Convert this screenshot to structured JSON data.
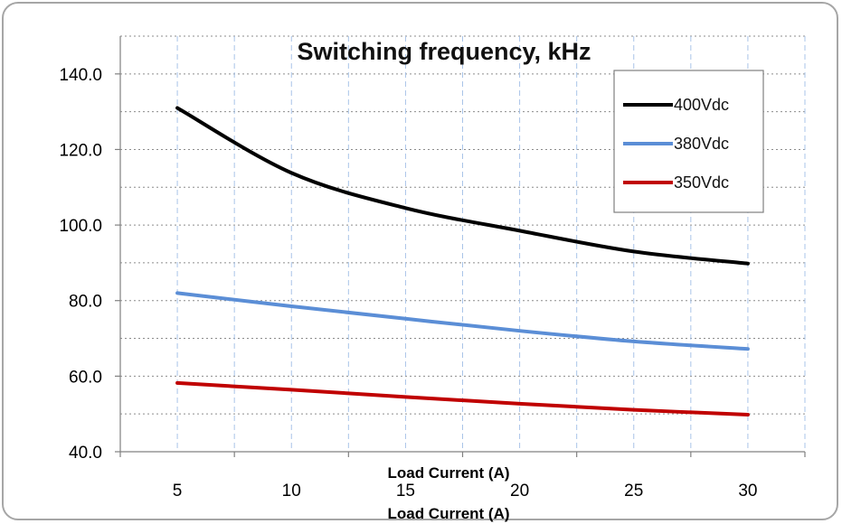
{
  "chart_data": {
    "type": "line",
    "title": "Switching frequency, kHz",
    "xlabel": "Load Current (A)",
    "xlabel_repeat": "Load Current (A)",
    "ylabel": "",
    "x": [
      5,
      10,
      15,
      20,
      25,
      30
    ],
    "x_ticks": [
      "5",
      "10",
      "15",
      "20",
      "25",
      "30"
    ],
    "y_ticks": [
      "40.0",
      "60.0",
      "80.0",
      "100.0",
      "120.0",
      "140.0"
    ],
    "ylim": [
      40,
      150
    ],
    "xlim": [
      2.5,
      32.5
    ],
    "grid": true,
    "legend_position": "top-right",
    "series": [
      {
        "name": "400Vdc",
        "color": "#000000",
        "values": [
          131.0,
          113.8,
          104.5,
          98.5,
          93.0,
          89.8
        ]
      },
      {
        "name": "380Vdc",
        "color": "#5b8ed6",
        "values": [
          82.0,
          78.5,
          75.2,
          72.0,
          69.2,
          67.2
        ]
      },
      {
        "name": "350Vdc",
        "color": "#c00000",
        "values": [
          58.2,
          56.4,
          54.5,
          52.7,
          51.1,
          49.8
        ]
      }
    ]
  }
}
